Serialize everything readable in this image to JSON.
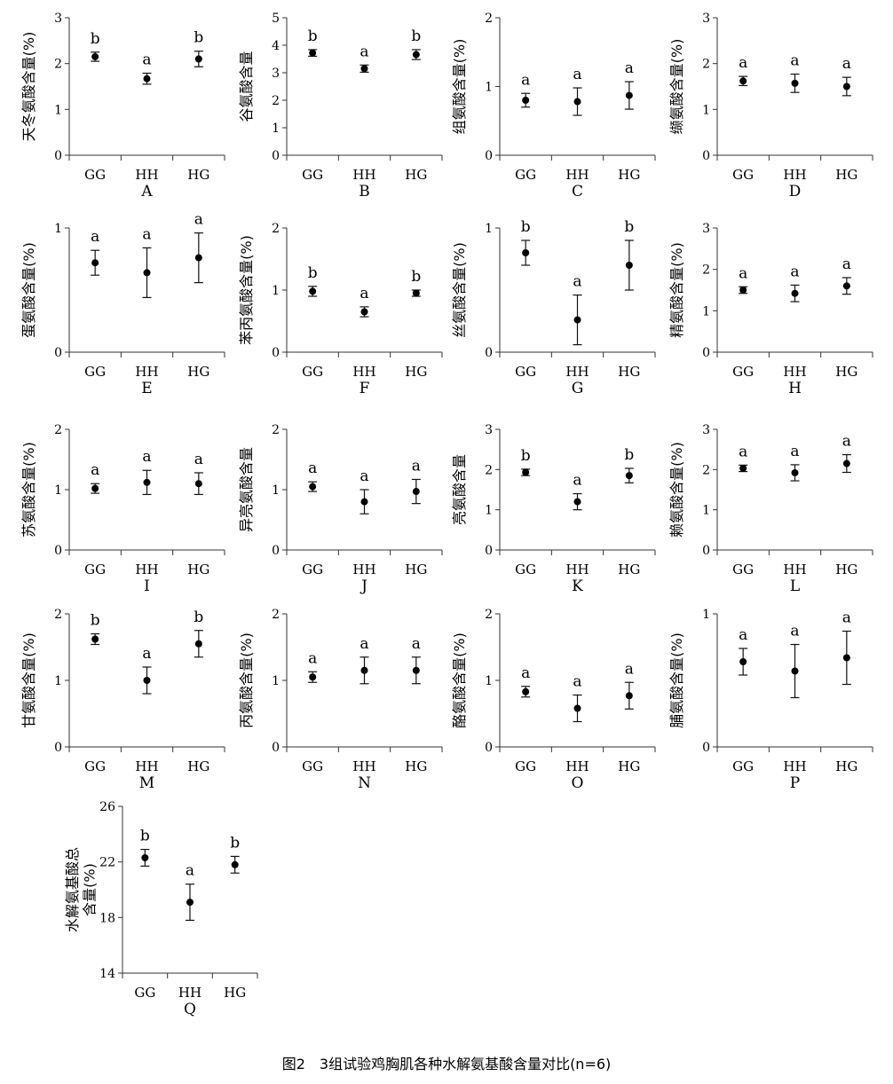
{
  "caption": "图2　3组试验鸡胸肌各种水解氨基酸含量对比(n=6)",
  "chart_data": [
    {
      "type": "scatter",
      "panel": "A",
      "ylabel": "天冬氨酸含量(%)",
      "categories": [
        "GG",
        "HH",
        "HG"
      ],
      "ylim": [
        0,
        3
      ],
      "yticks": [
        "0",
        "1",
        "2",
        "3"
      ],
      "values": [
        2.15,
        1.67,
        2.1
      ],
      "errors": [
        0.1,
        0.12,
        0.17
      ],
      "letters": [
        "b",
        "a",
        "b"
      ]
    },
    {
      "type": "scatter",
      "panel": "B",
      "ylabel": "谷氨酸含量",
      "categories": [
        "GG",
        "HH",
        "HG"
      ],
      "ylim": [
        0,
        5
      ],
      "yticks": [
        "0",
        "1",
        "2",
        "3",
        "4",
        "5"
      ],
      "values": [
        3.72,
        3.15,
        3.66
      ],
      "errors": [
        0.12,
        0.13,
        0.18
      ],
      "letters": [
        "b",
        "a",
        "b"
      ]
    },
    {
      "type": "scatter",
      "panel": "C",
      "ylabel": "组氨酸含量(%)",
      "categories": [
        "GG",
        "HH",
        "HG"
      ],
      "ylim": [
        0,
        2
      ],
      "yticks": [
        "0",
        "1",
        "2"
      ],
      "values": [
        0.8,
        0.78,
        0.87
      ],
      "errors": [
        0.1,
        0.2,
        0.2
      ],
      "letters": [
        "a",
        "a",
        "a"
      ]
    },
    {
      "type": "scatter",
      "panel": "D",
      "ylabel": "缬氨酸含量(%)",
      "categories": [
        "GG",
        "HH",
        "HG"
      ],
      "ylim": [
        0,
        3
      ],
      "yticks": [
        "0",
        "1",
        "2",
        "3"
      ],
      "values": [
        1.62,
        1.57,
        1.5
      ],
      "errors": [
        0.1,
        0.2,
        0.2
      ],
      "letters": [
        "a",
        "a",
        "a"
      ]
    },
    {
      "type": "scatter",
      "panel": "E",
      "ylabel": "蛋氨酸含量(%)",
      "categories": [
        "GG",
        "HH",
        "HG"
      ],
      "ylim": [
        0,
        1
      ],
      "yticks": [
        "0",
        "1"
      ],
      "values": [
        0.72,
        0.64,
        0.76
      ],
      "errors": [
        0.1,
        0.2,
        0.2
      ],
      "letters": [
        "a",
        "a",
        "a"
      ]
    },
    {
      "type": "scatter",
      "panel": "F",
      "ylabel": "苯丙氨酸含量(%)",
      "categories": [
        "GG",
        "HH",
        "HG"
      ],
      "ylim": [
        0,
        2
      ],
      "yticks": [
        "0",
        "1",
        "2"
      ],
      "values": [
        0.98,
        0.65,
        0.95
      ],
      "errors": [
        0.08,
        0.08,
        0.05
      ],
      "letters": [
        "b",
        "a",
        "b"
      ]
    },
    {
      "type": "scatter",
      "panel": "G",
      "ylabel": "丝氨酸含量(%)",
      "categories": [
        "GG",
        "HH",
        "HG"
      ],
      "ylim": [
        0,
        1
      ],
      "yticks": [
        "0",
        "1"
      ],
      "values": [
        0.8,
        0.26,
        0.7
      ],
      "errors": [
        0.1,
        0.2,
        0.2
      ],
      "letters": [
        "b",
        "a",
        "b"
      ]
    },
    {
      "type": "scatter",
      "panel": "H",
      "ylabel": "精氨酸含量(%)",
      "categories": [
        "GG",
        "HH",
        "HG"
      ],
      "ylim": [
        0,
        3
      ],
      "yticks": [
        "0",
        "1",
        "2",
        "3"
      ],
      "values": [
        1.5,
        1.42,
        1.6
      ],
      "errors": [
        0.08,
        0.2,
        0.2
      ],
      "letters": [
        "a",
        "a",
        "a"
      ]
    },
    {
      "type": "scatter",
      "panel": "I",
      "ylabel": "苏氨酸含量(%)",
      "categories": [
        "GG",
        "HH",
        "HG"
      ],
      "ylim": [
        0,
        2
      ],
      "yticks": [
        "0",
        "1",
        "2"
      ],
      "values": [
        1.02,
        1.12,
        1.1
      ],
      "errors": [
        0.08,
        0.2,
        0.18
      ],
      "letters": [
        "a",
        "a",
        "a"
      ]
    },
    {
      "type": "scatter",
      "panel": "J",
      "ylabel": "异亮氨酸含量",
      "categories": [
        "GG",
        "HH",
        "HG"
      ],
      "ylim": [
        0,
        2
      ],
      "yticks": [
        "0",
        "1",
        "2"
      ],
      "values": [
        1.05,
        0.8,
        0.97
      ],
      "errors": [
        0.08,
        0.2,
        0.2
      ],
      "letters": [
        "a",
        "a",
        "a"
      ]
    },
    {
      "type": "scatter",
      "panel": "K",
      "ylabel": "亮氨酸含量",
      "categories": [
        "GG",
        "HH",
        "HG"
      ],
      "ylim": [
        0,
        3
      ],
      "yticks": [
        "0",
        "1",
        "2",
        "3"
      ],
      "values": [
        1.93,
        1.2,
        1.85
      ],
      "errors": [
        0.08,
        0.2,
        0.18
      ],
      "letters": [
        "b",
        "a",
        "b"
      ]
    },
    {
      "type": "scatter",
      "panel": "L",
      "ylabel": "赖氨酸含量(%)",
      "categories": [
        "GG",
        "HH",
        "HG"
      ],
      "ylim": [
        0,
        3
      ],
      "yticks": [
        "0",
        "1",
        "2",
        "3"
      ],
      "values": [
        2.03,
        1.92,
        2.15
      ],
      "errors": [
        0.08,
        0.2,
        0.22
      ],
      "letters": [
        "a",
        "a",
        "a"
      ]
    },
    {
      "type": "scatter",
      "panel": "M",
      "ylabel": "甘氨酸含量(%)",
      "categories": [
        "GG",
        "HH",
        "HG"
      ],
      "ylim": [
        0,
        2
      ],
      "yticks": [
        "0",
        "1",
        "2"
      ],
      "values": [
        1.62,
        1.0,
        1.55
      ],
      "errors": [
        0.08,
        0.2,
        0.2
      ],
      "letters": [
        "b",
        "a",
        "b"
      ]
    },
    {
      "type": "scatter",
      "panel": "N",
      "ylabel": "丙氨酸含量(%)",
      "categories": [
        "GG",
        "HH",
        "HG"
      ],
      "ylim": [
        0,
        2
      ],
      "yticks": [
        "0",
        "1",
        "2"
      ],
      "values": [
        1.05,
        1.15,
        1.15
      ],
      "errors": [
        0.08,
        0.2,
        0.2
      ],
      "letters": [
        "a",
        "a",
        "a"
      ]
    },
    {
      "type": "scatter",
      "panel": "O",
      "ylabel": "酪氨酸含量(%)",
      "categories": [
        "GG",
        "HH",
        "HG"
      ],
      "ylim": [
        0,
        2
      ],
      "yticks": [
        "0",
        "1",
        "2"
      ],
      "values": [
        0.83,
        0.58,
        0.77
      ],
      "errors": [
        0.08,
        0.2,
        0.2
      ],
      "letters": [
        "a",
        "a",
        "a"
      ]
    },
    {
      "type": "scatter",
      "panel": "P",
      "ylabel": "脯氨酸含量(%)",
      "categories": [
        "GG",
        "HH",
        "HG"
      ],
      "ylim": [
        0,
        1
      ],
      "yticks": [
        "0",
        "1"
      ],
      "values": [
        0.64,
        0.57,
        0.67
      ],
      "errors": [
        0.1,
        0.2,
        0.2
      ],
      "letters": [
        "a",
        "a",
        "a"
      ]
    },
    {
      "type": "scatter",
      "panel": "Q",
      "ylabel": "水解氨基酸总含量(%)",
      "categories": [
        "GG",
        "HH",
        "HG"
      ],
      "ylim": [
        14,
        26
      ],
      "yticks": [
        "14",
        "18",
        "22",
        "26"
      ],
      "values": [
        22.3,
        19.1,
        21.8
      ],
      "errors": [
        0.6,
        1.3,
        0.6
      ],
      "letters": [
        "b",
        "a",
        "b"
      ]
    }
  ]
}
